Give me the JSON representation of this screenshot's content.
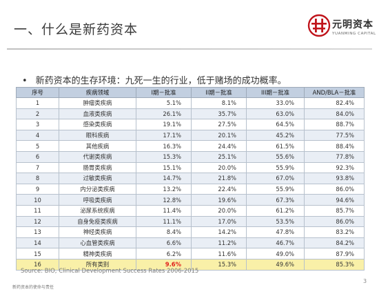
{
  "header": {
    "title": "一、什么是新药资本",
    "logo_cn": "元明资本",
    "logo_en": "YUANMING CAPITAL",
    "brand_color": "#c0141b"
  },
  "bullet": {
    "symbol": "•",
    "text": "新药资本的生存环境：九死一生的行业，低于赌场的成功概率。"
  },
  "table": {
    "columns": [
      "序号",
      "疾病领域",
      "I期－批准",
      "II期－批准",
      "III期－批准",
      "AND/BLA－批准"
    ],
    "rows": [
      [
        "1",
        "肿瘤类疾病",
        "5.1%",
        "8.1%",
        "33.0%",
        "82.4%"
      ],
      [
        "2",
        "血液类疾病",
        "26.1%",
        "35.7%",
        "63.0%",
        "84.0%"
      ],
      [
        "3",
        "感染类疾病",
        "19.1%",
        "27.5%",
        "64.5%",
        "88.7%"
      ],
      [
        "4",
        "眼科疾病",
        "17.1%",
        "20.1%",
        "45.2%",
        "77.5%"
      ],
      [
        "5",
        "其他疾病",
        "16.3%",
        "24.4%",
        "61.5%",
        "88.4%"
      ],
      [
        "6",
        "代谢类疾病",
        "15.3%",
        "25.1%",
        "55.6%",
        "77.8%"
      ],
      [
        "7",
        "肠胃类疾病",
        "15.1%",
        "20.0%",
        "55.9%",
        "92.3%"
      ],
      [
        "8",
        "过敏类疾病",
        "14.7%",
        "21.8%",
        "67.0%",
        "93.8%"
      ],
      [
        "9",
        "内分泌类疾病",
        "13.2%",
        "22.4%",
        "55.9%",
        "86.0%"
      ],
      [
        "10",
        "呼吸类疾病",
        "12.8%",
        "19.6%",
        "67.3%",
        "94.6%"
      ],
      [
        "11",
        "泌尿系统疾病",
        "11.4%",
        "20.0%",
        "61.2%",
        "85.7%"
      ],
      [
        "12",
        "自身免疫类疾病",
        "11.1%",
        "17.0%",
        "53.5%",
        "86.0%"
      ],
      [
        "13",
        "神经类疾病",
        "8.4%",
        "14.2%",
        "47.8%",
        "83.2%"
      ],
      [
        "14",
        "心血管类疾病",
        "6.6%",
        "11.2%",
        "46.7%",
        "84.2%"
      ],
      [
        "15",
        "精神类疾病",
        "6.2%",
        "11.6%",
        "49.0%",
        "87.9%"
      ],
      [
        "16",
        "所有类别",
        "9.6%",
        "15.3%",
        "49.6%",
        "85.3%"
      ]
    ],
    "highlight_row": 16,
    "highlight_color": "#f9f0a8",
    "highlight_value_color": "#e0201b"
  },
  "source": "Source: BIO, Clinical Development Success Rates 2006-2015",
  "footer": {
    "left": "新药资本的使命与责任",
    "page_number": "3"
  }
}
